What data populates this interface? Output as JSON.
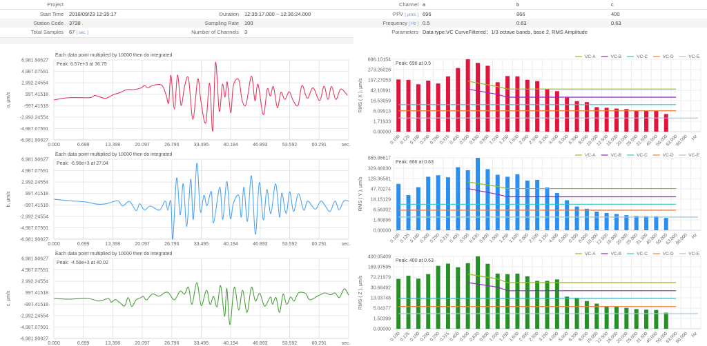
{
  "summary": {
    "project_label": "Project",
    "start_time_label": "Start Time",
    "start_time": "2018/09/23 12:35:17",
    "duration_label": "Duration",
    "duration": "12:35:17.000 ~ 12:36:24.000",
    "station_code_label": "Station Code",
    "station_code": "3738",
    "sampling_rate_label": "Sampling Rate",
    "sampling_rate": "100",
    "total_samples_label": "Total Samples",
    "total_samples": "67",
    "total_samples_unit": "[ sec. ]",
    "channels_label": "Number of Channels",
    "channels": "3"
  },
  "channels": {
    "channel_label": "Channel",
    "names": [
      "a",
      "b",
      "c"
    ],
    "ppv_label": "PPV",
    "ppv_unit": "[ µm/s ]",
    "ppv": [
      "696",
      "866",
      "400"
    ],
    "freq_label": "Frequency",
    "freq_unit": "[ Hz ]",
    "freq": [
      "0.5",
      "0.63",
      "0.63"
    ],
    "params_label": "Parameters",
    "params": "Data type:VC CurveFiltered：1/3 octave bands, base 2, RMS Amplitude"
  },
  "chart_data": [
    {
      "type": "line",
      "title": "Each data point multiplied by 10000 then do integrated",
      "ylabel": "a, µm/s",
      "peak": "Peak: 6.57e+3 at 36.75",
      "color": "#e3385e",
      "xlim": [
        0,
        67
      ],
      "ylim": [
        -6981.90627,
        6981.90627
      ],
      "xticks": [
        "0.000",
        "6.699",
        "13.398",
        "20.097",
        "26.796",
        "33.495",
        "40.194",
        "46.893",
        "53.592",
        "60.291"
      ],
      "xunit": "sec.",
      "yticks": [
        "6,981.90627",
        "4,987.07591",
        "2,992.24554",
        "997.41518",
        "-997.41518",
        "-2,992.24554",
        "-4,987.07591",
        "-6,981.90627"
      ],
      "points": [
        [
          0,
          0
        ],
        [
          3.5,
          400
        ],
        [
          8.2,
          400
        ],
        [
          9.3,
          800
        ],
        [
          10.9,
          400
        ],
        [
          11.9,
          300
        ],
        [
          13.5,
          900
        ],
        [
          15.1,
          1300
        ],
        [
          16.6,
          1800
        ],
        [
          18.2,
          1800
        ],
        [
          19.8,
          2100
        ],
        [
          20.6,
          2500
        ],
        [
          21.4,
          2100
        ],
        [
          22.4,
          2500
        ],
        [
          24.5,
          2600
        ],
        [
          25.5,
          900
        ],
        [
          26.1,
          -500
        ],
        [
          26.6,
          4300
        ],
        [
          27.4,
          -1600
        ],
        [
          28.1,
          4370
        ],
        [
          28.9,
          -940
        ],
        [
          29.7,
          2330
        ],
        [
          30.6,
          3750
        ],
        [
          31.6,
          -3390
        ],
        [
          32.7,
          3630
        ],
        [
          33.4,
          -120
        ],
        [
          34.5,
          -4000
        ],
        [
          35.4,
          2940
        ],
        [
          36.1,
          -5430
        ],
        [
          36.75,
          6570
        ],
        [
          37.6,
          -1960
        ],
        [
          38.3,
          2730
        ],
        [
          38.9,
          490
        ],
        [
          39.4,
          3140
        ],
        [
          40.2,
          -2240
        ],
        [
          40.8,
          2530
        ],
        [
          42.0,
          3550
        ],
        [
          42.8,
          -120
        ],
        [
          43.7,
          -730
        ],
        [
          44.9,
          4160
        ],
        [
          45.7,
          -120
        ],
        [
          46.4,
          2730
        ],
        [
          47.6,
          -2570
        ],
        [
          48.5,
          1920
        ],
        [
          49.2,
          690
        ],
        [
          49.9,
          2330
        ],
        [
          50.8,
          -1350
        ],
        [
          51.6,
          1310
        ],
        [
          52.5,
          80
        ],
        [
          53.5,
          1430
        ],
        [
          54.4,
          -120
        ],
        [
          55.5,
          -940
        ],
        [
          56.4,
          2530
        ],
        [
          57.6,
          290
        ],
        [
          58.9,
          2120
        ],
        [
          60.4,
          -120
        ],
        [
          61.4,
          2410
        ],
        [
          62.3,
          80
        ],
        [
          63.1,
          2330
        ],
        [
          64.1,
          80
        ],
        [
          65.2,
          1920
        ],
        [
          66.7,
          820
        ]
      ]
    },
    {
      "type": "line",
      "title": "Each data point multiplied by 10000 then do integrated",
      "ylabel": "b, µm/s",
      "peak": "Peak: -6.98e+3 at 27.04",
      "color": "#4aa3f5",
      "xlim": [
        0,
        67
      ],
      "ylim": [
        -6981.90627,
        6981.90627
      ],
      "xticks": [
        "0.000",
        "6.699",
        "13.398",
        "20.097",
        "26.796",
        "33.495",
        "40.194",
        "46.893",
        "53.592",
        "60.291"
      ],
      "xunit": "sec.",
      "yticks": [
        "6,981.90627",
        "4,987.07591",
        "2,992.24554",
        "997.41518",
        "-997.41518",
        "-2,992.24554",
        "-4,987.07591",
        "-6,981.90627"
      ],
      "points": [
        [
          0,
          0
        ],
        [
          3.5,
          -280
        ],
        [
          7.2,
          -470
        ],
        [
          9.8,
          -870
        ],
        [
          11.9,
          -800
        ],
        [
          14.5,
          -280
        ],
        [
          15.6,
          -1200
        ],
        [
          17.2,
          -400
        ],
        [
          18.7,
          -2000
        ],
        [
          19.5,
          -800
        ],
        [
          20.6,
          -1900
        ],
        [
          21.9,
          -1200
        ],
        [
          24.0,
          -1900
        ],
        [
          25.3,
          -320
        ],
        [
          25.9,
          -1930
        ],
        [
          26.6,
          -400
        ],
        [
          27.04,
          -6980
        ],
        [
          27.9,
          3700
        ],
        [
          28.7,
          -2730
        ],
        [
          29.4,
          2700
        ],
        [
          30.2,
          -4740
        ],
        [
          31.1,
          3500
        ],
        [
          31.7,
          -3540
        ],
        [
          32.5,
          6300
        ],
        [
          33.3,
          -2130
        ],
        [
          34.1,
          680
        ],
        [
          34.8,
          -1130
        ],
        [
          35.8,
          1290
        ],
        [
          36.3,
          -4140
        ],
        [
          37.7,
          2090
        ],
        [
          38.4,
          -3540
        ],
        [
          39.3,
          3100
        ],
        [
          40.1,
          -3340
        ],
        [
          40.8,
          -720
        ],
        [
          42.0,
          680
        ],
        [
          42.6,
          -3140
        ],
        [
          43.2,
          2090
        ],
        [
          44.0,
          -3860
        ],
        [
          44.9,
          4100
        ],
        [
          45.8,
          -6150
        ],
        [
          46.7,
          2900
        ],
        [
          47.6,
          -3620
        ],
        [
          48.4,
          1690
        ],
        [
          49.3,
          -2530
        ],
        [
          50.4,
          2700
        ],
        [
          51.3,
          -3140
        ],
        [
          51.8,
          1090
        ],
        [
          52.8,
          -2530
        ],
        [
          53.6,
          1290
        ],
        [
          54.5,
          -2130
        ],
        [
          55.6,
          960
        ],
        [
          56.8,
          -1930
        ],
        [
          57.7,
          -320
        ],
        [
          59.4,
          -1730
        ],
        [
          60.7,
          -320
        ],
        [
          61.8,
          -1330
        ],
        [
          62.8,
          -2130
        ],
        [
          63.9,
          -320
        ],
        [
          64.8,
          -1850
        ],
        [
          65.9,
          -320
        ],
        [
          67.0,
          -320
        ]
      ]
    },
    {
      "type": "line",
      "title": "Each data point multiplied by 10000 then do integrated",
      "ylabel": "c, µm/s",
      "peak": "Peak: -4.58e+3 at 40.02",
      "color": "#4a9e3c",
      "xlim": [
        0,
        67
      ],
      "ylim": [
        -6981.90627,
        6981.90627
      ],
      "xticks": [
        "0.000",
        "6.699",
        "13.398",
        "20.097",
        "26.796",
        "33.495",
        "40.194",
        "46.893",
        "53.592",
        "60.291"
      ],
      "xunit": "sec.",
      "yticks": [
        "6,981.90627",
        "4,987.07591",
        "2,992.24554",
        "997.41518",
        "-997.41518",
        "-2,992.24554",
        "-4,987.07591",
        "-6,981.90627"
      ],
      "points": [
        [
          0,
          0
        ],
        [
          3.5,
          -120
        ],
        [
          7.7,
          0
        ],
        [
          10.3,
          -450
        ],
        [
          12.4,
          0
        ],
        [
          13.0,
          -650
        ],
        [
          14.0,
          -200
        ],
        [
          15.1,
          -800
        ],
        [
          16.1,
          -1300
        ],
        [
          16.9,
          160
        ],
        [
          17.7,
          -1400
        ],
        [
          18.7,
          -250
        ],
        [
          19.8,
          160
        ],
        [
          20.3,
          370
        ],
        [
          21.1,
          -250
        ],
        [
          22.4,
          780
        ],
        [
          23.9,
          400
        ],
        [
          25.3,
          1040
        ],
        [
          26.1,
          960
        ],
        [
          27.4,
          -240
        ],
        [
          28.7,
          1280
        ],
        [
          29.7,
          760
        ],
        [
          30.6,
          1960
        ],
        [
          31.4,
          -1040
        ],
        [
          32.5,
          2760
        ],
        [
          33.5,
          -1240
        ],
        [
          34.7,
          1440
        ],
        [
          35.5,
          -1040
        ],
        [
          36.3,
          360
        ],
        [
          37.1,
          -1440
        ],
        [
          37.9,
          2240
        ],
        [
          38.8,
          -3120
        ],
        [
          39.3,
          1760
        ],
        [
          40.02,
          -4580
        ],
        [
          41.0,
          1960
        ],
        [
          42.0,
          -2040
        ],
        [
          42.9,
          1440
        ],
        [
          43.9,
          -2440
        ],
        [
          44.9,
          1960
        ],
        [
          45.8,
          -440
        ],
        [
          46.8,
          880
        ],
        [
          47.9,
          -1360
        ],
        [
          49.2,
          240
        ],
        [
          49.7,
          -1040
        ],
        [
          50.5,
          160
        ],
        [
          51.3,
          -2440
        ],
        [
          52.1,
          760
        ],
        [
          52.9,
          -1040
        ],
        [
          53.8,
          240
        ],
        [
          54.6,
          -440
        ],
        [
          55.6,
          960
        ],
        [
          57.2,
          880
        ],
        [
          58.2,
          -240
        ],
        [
          60.3,
          560
        ],
        [
          61.6,
          960
        ],
        [
          62.9,
          640
        ],
        [
          63.9,
          960
        ],
        [
          64.9,
          160
        ],
        [
          66.0,
          1680
        ],
        [
          67.0,
          560
        ]
      ]
    },
    {
      "type": "bar",
      "ylabel": "RMS ( X ), µm/s",
      "peak": "Peak: 696 at 0.5",
      "color": "#e0143c",
      "xunit": "Hz",
      "categories": [
        "0.100",
        "0.125",
        "0.160",
        "0.200",
        "0.250",
        "0.315",
        "0.400",
        "0.500",
        "0.630",
        "0.800",
        "1.000",
        "1.250",
        "1.600",
        "2.000",
        "2.500",
        "3.150",
        "4.000",
        "5.000",
        "6.300",
        "8.000",
        "10.000",
        "12.500",
        "16.000",
        "20.000",
        "25.000",
        "31.500",
        "40.000",
        "50.000",
        "63.000",
        "80.000"
      ],
      "yticks": [
        "696.10154",
        "273.26028",
        "107.27053",
        "42.10991",
        "16.53059",
        "6.09913",
        "1.71933",
        "0.00000"
      ],
      "values": [
        115,
        108,
        80,
        103,
        85,
        165,
        340,
        696,
        550,
        430,
        93,
        170,
        165,
        110,
        100,
        48,
        40,
        24,
        16,
        15,
        10,
        9.3,
        8.5,
        8,
        6.5,
        6.3,
        6.3,
        4.8,
        null,
        null
      ]
    },
    {
      "type": "bar",
      "ylabel": "RMS ( Y ), µm/s",
      "peak": "Peak: 866 at 0.63",
      "color": "#2b8ff0",
      "xunit": "Hz",
      "categories": [
        "0.100",
        "0.125",
        "0.160",
        "0.200",
        "0.250",
        "0.315",
        "0.400",
        "0.500",
        "0.630",
        "0.800",
        "1.000",
        "1.250",
        "1.600",
        "2.000",
        "2.500",
        "3.150",
        "4.000",
        "5.000",
        "6.300",
        "8.000",
        "10.000",
        "12.500",
        "16.000",
        "20.000",
        "25.000",
        "31.500",
        "40.000",
        "50.000",
        "63.000",
        "80.000"
      ],
      "yticks": [
        "865.86617",
        "329.46930",
        "125.36581",
        "47.70274",
        "18.15129",
        "6.56302",
        "1.80896",
        "0.00000"
      ],
      "values": [
        85,
        30,
        60,
        160,
        190,
        150,
        380,
        290,
        866,
        310,
        200,
        160,
        210,
        110,
        115,
        58,
        36,
        17,
        10,
        7.5,
        5.6,
        5,
        4.5,
        4,
        3.6,
        3.5,
        3.5,
        2.7,
        null,
        null
      ]
    },
    {
      "type": "bar",
      "ylabel": "RMS ( Z ), µm/s",
      "peak": "Peak: 400 at 0.63",
      "color": "#259125",
      "xunit": "Hz",
      "categories": [
        "0.100",
        "0.125",
        "0.160",
        "0.200",
        "0.250",
        "0.315",
        "0.400",
        "0.500",
        "0.630",
        "0.800",
        "1.000",
        "1.250",
        "1.600",
        "2.000",
        "2.500",
        "3.150",
        "4.000",
        "5.000",
        "6.300",
        "8.000",
        "10.000",
        "12.500",
        "16.000",
        "20.000",
        "25.000",
        "31.500",
        "40.000",
        "50.000",
        "63.000",
        "80.000"
      ],
      "yticks": [
        "400.05409",
        "169.97595",
        "72.21979",
        "30.68492",
        "13.03748",
        "5.04377",
        "1.50399",
        "0.00000"
      ],
      "values": [
        65,
        85,
        66,
        100,
        190,
        240,
        165,
        250,
        400,
        235,
        105,
        100,
        105,
        80,
        57,
        57,
        63,
        15,
        13,
        10.5,
        8.5,
        6.5,
        6,
        5.2,
        4.7,
        4.5,
        4.4,
        3.5,
        null,
        null
      ]
    }
  ],
  "vc_curves": [
    {
      "name": "VC-A",
      "color": "#8fbc1e",
      "points": [
        [
          "0.500",
          100
        ],
        [
          "1.000",
          65
        ],
        [
          "1.250",
          50
        ],
        [
          "63.000",
          50
        ]
      ]
    },
    {
      "name": "VC-B",
      "color": "#9b1fbf",
      "points": [
        [
          "0.500",
          50
        ],
        [
          "1.000",
          32
        ],
        [
          "1.250",
          25
        ],
        [
          "63.000",
          25
        ]
      ]
    },
    {
      "name": "VC-C",
      "color": "#2ec4c4",
      "points": [
        [
          "0.100",
          12.5
        ],
        [
          "63.000",
          12.5
        ]
      ]
    },
    {
      "name": "VC-D",
      "color": "#f07a32",
      "points": [
        [
          "0.100",
          6.25
        ],
        [
          "63.000",
          6.25
        ]
      ]
    },
    {
      "name": "VC-E",
      "color": "#a3c2d6",
      "points": [
        [
          "0.100",
          3.12
        ],
        [
          "80.000",
          3.12
        ]
      ]
    }
  ]
}
